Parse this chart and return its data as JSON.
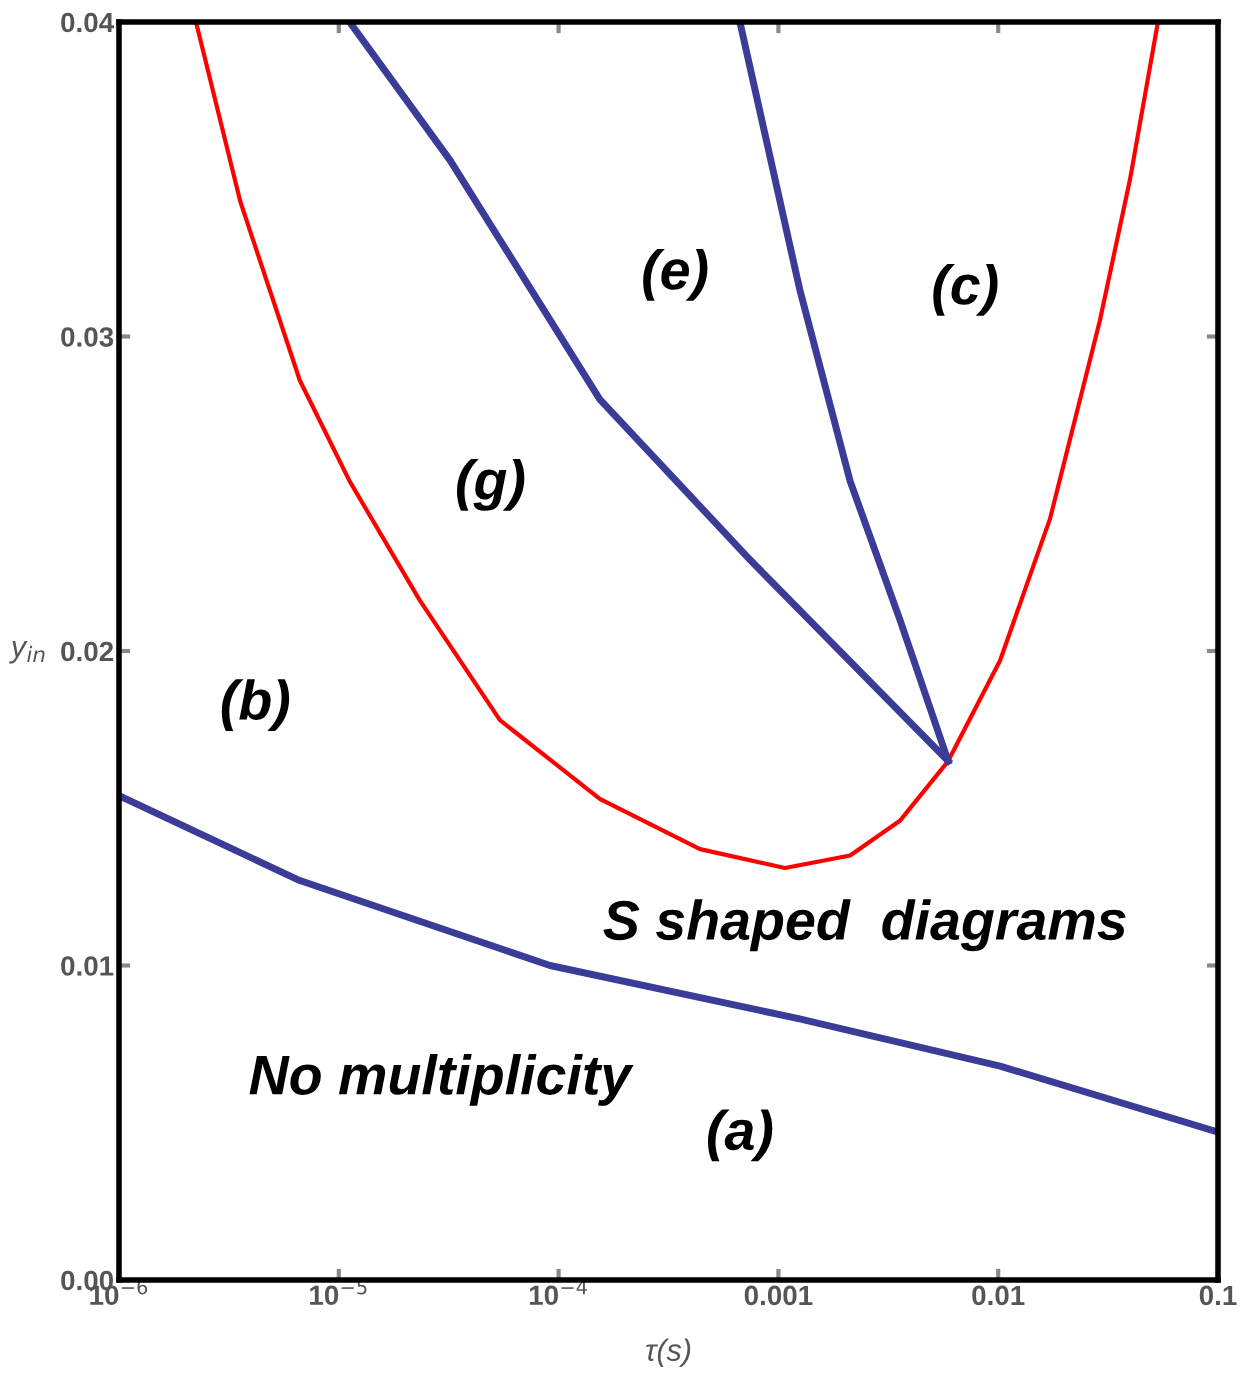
{
  "chart_data": {
    "type": "line",
    "xlabel": "τ(s)",
    "ylabel": "y$_{in}$",
    "log": "x",
    "xlim": [
      1e-06,
      0.1
    ],
    "ylim": [
      0,
      0.04
    ],
    "xticks": [
      {
        "value": 1e-06,
        "label": "10$^{−6}$"
      },
      {
        "value": 1e-05,
        "label": "10$^{−5}$"
      },
      {
        "value": 0.0001,
        "label": "10$^{−4}$"
      },
      0.001,
      0.01,
      0.1
    ],
    "yticks": [
      {
        "value": 0,
        "label": "0.00"
      },
      0.01,
      0.02,
      0.03,
      0.04
    ],
    "grid": false,
    "legend": false,
    "marker": "none",
    "line_style": "solid",
    "series": [
      {
        "color": "#ff0000",
        "x": [
          2.24e-06,
          3.56e-06,
          6.65e-06,
          1.12e-05,
          2.34e-05,
          5.41e-05,
          0.000154,
          0.00044,
          0.00107,
          0.00212,
          0.00357,
          0.00592,
          0.0102,
          0.0172,
          0.029,
          0.0398,
          0.0533
        ],
        "values": [
          0.04,
          0.0343,
          0.0286,
          0.0254,
          0.0216,
          0.0178,
          0.0153,
          0.0137,
          0.0131,
          0.0135,
          0.0146,
          0.0165,
          0.0197,
          0.0242,
          0.0305,
          0.035,
          0.04
        ]
      },
      {
        "color": "#3b3b98",
        "x": [
          1e-06,
          6.65e-06,
          9.14e-05,
          0.00125,
          0.0102,
          0.1
        ],
        "values": [
          0.0154,
          0.0127,
          0.01,
          0.0083,
          0.0068,
          0.0047
        ]
      },
      {
        "color": "#3b3b98",
        "x": [
          1.12e-05,
          3.21e-05,
          0.000154,
          0.000743,
          0.00592
        ],
        "values": [
          0.04,
          0.0356,
          0.028,
          0.0229,
          0.0165
        ]
      },
      {
        "color": "#3b3b98",
        "x": [
          0.000668,
          0.00125,
          0.00212,
          0.00357,
          0.00592
        ],
        "values": [
          0.04,
          0.0315,
          0.0254,
          0.021,
          0.0165
        ]
      }
    ],
    "annotations": [
      "(e)",
      "(c)",
      "(g)",
      "(b)",
      "S shaped  diagrams",
      "No multiplicity",
      "(a)"
    ]
  }
}
